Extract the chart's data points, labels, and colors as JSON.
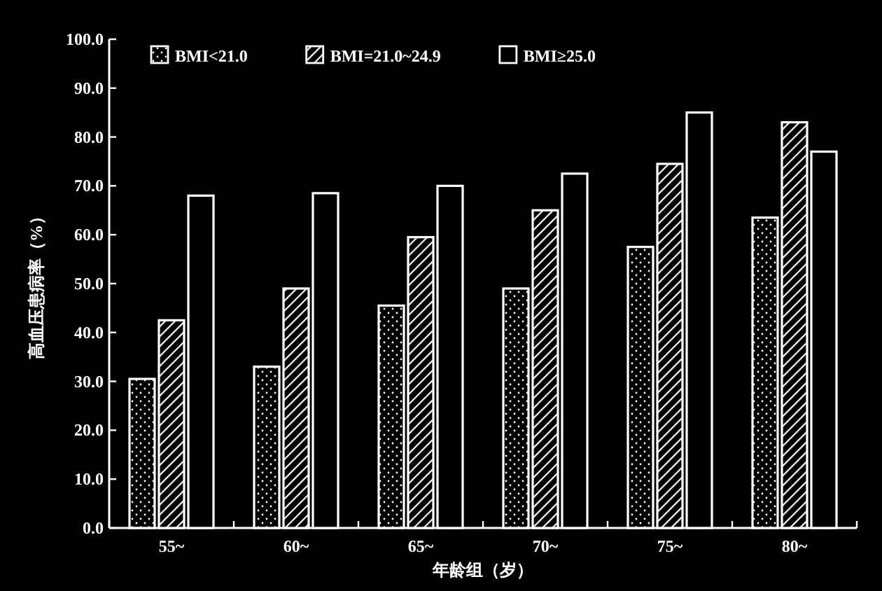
{
  "chart_data": {
    "type": "bar",
    "xlabel": "年龄组（岁）",
    "ylabel": "高血压患病率（%）",
    "categories": [
      "55~",
      "60~",
      "65~",
      "70~",
      "75~",
      "80~"
    ],
    "series": [
      {
        "name": "BMI<21.0",
        "color": "#ffffff",
        "values": [
          30.5,
          33,
          45.5,
          49,
          57.5,
          63.5
        ]
      },
      {
        "name": "BMI=21.0~24.9",
        "color": "#ffffff",
        "values": [
          42.5,
          49,
          59.5,
          65,
          74.5,
          83
        ]
      },
      {
        "name": "BMI≥25.0",
        "color": "#ffffff",
        "values": [
          68,
          68.5,
          70,
          72.5,
          85,
          77
        ]
      }
    ],
    "ylim": [
      0,
      100
    ],
    "yticks": [
      {
        "value": 0,
        "label": "0.0"
      },
      {
        "value": 10,
        "label": "10.0"
      },
      {
        "value": 20,
        "label": "20.0"
      },
      {
        "value": 30,
        "label": "30.0"
      },
      {
        "value": 40,
        "label": "40.0"
      },
      {
        "value": 50,
        "label": "50.0"
      },
      {
        "value": 60,
        "label": "60.0"
      },
      {
        "value": 70,
        "label": "70.0"
      },
      {
        "value": 80,
        "label": "80.0"
      },
      {
        "value": 90,
        "label": "90.0"
      },
      {
        "value": 100,
        "label": "100.0"
      }
    ],
    "legend": "top",
    "grid": false
  }
}
